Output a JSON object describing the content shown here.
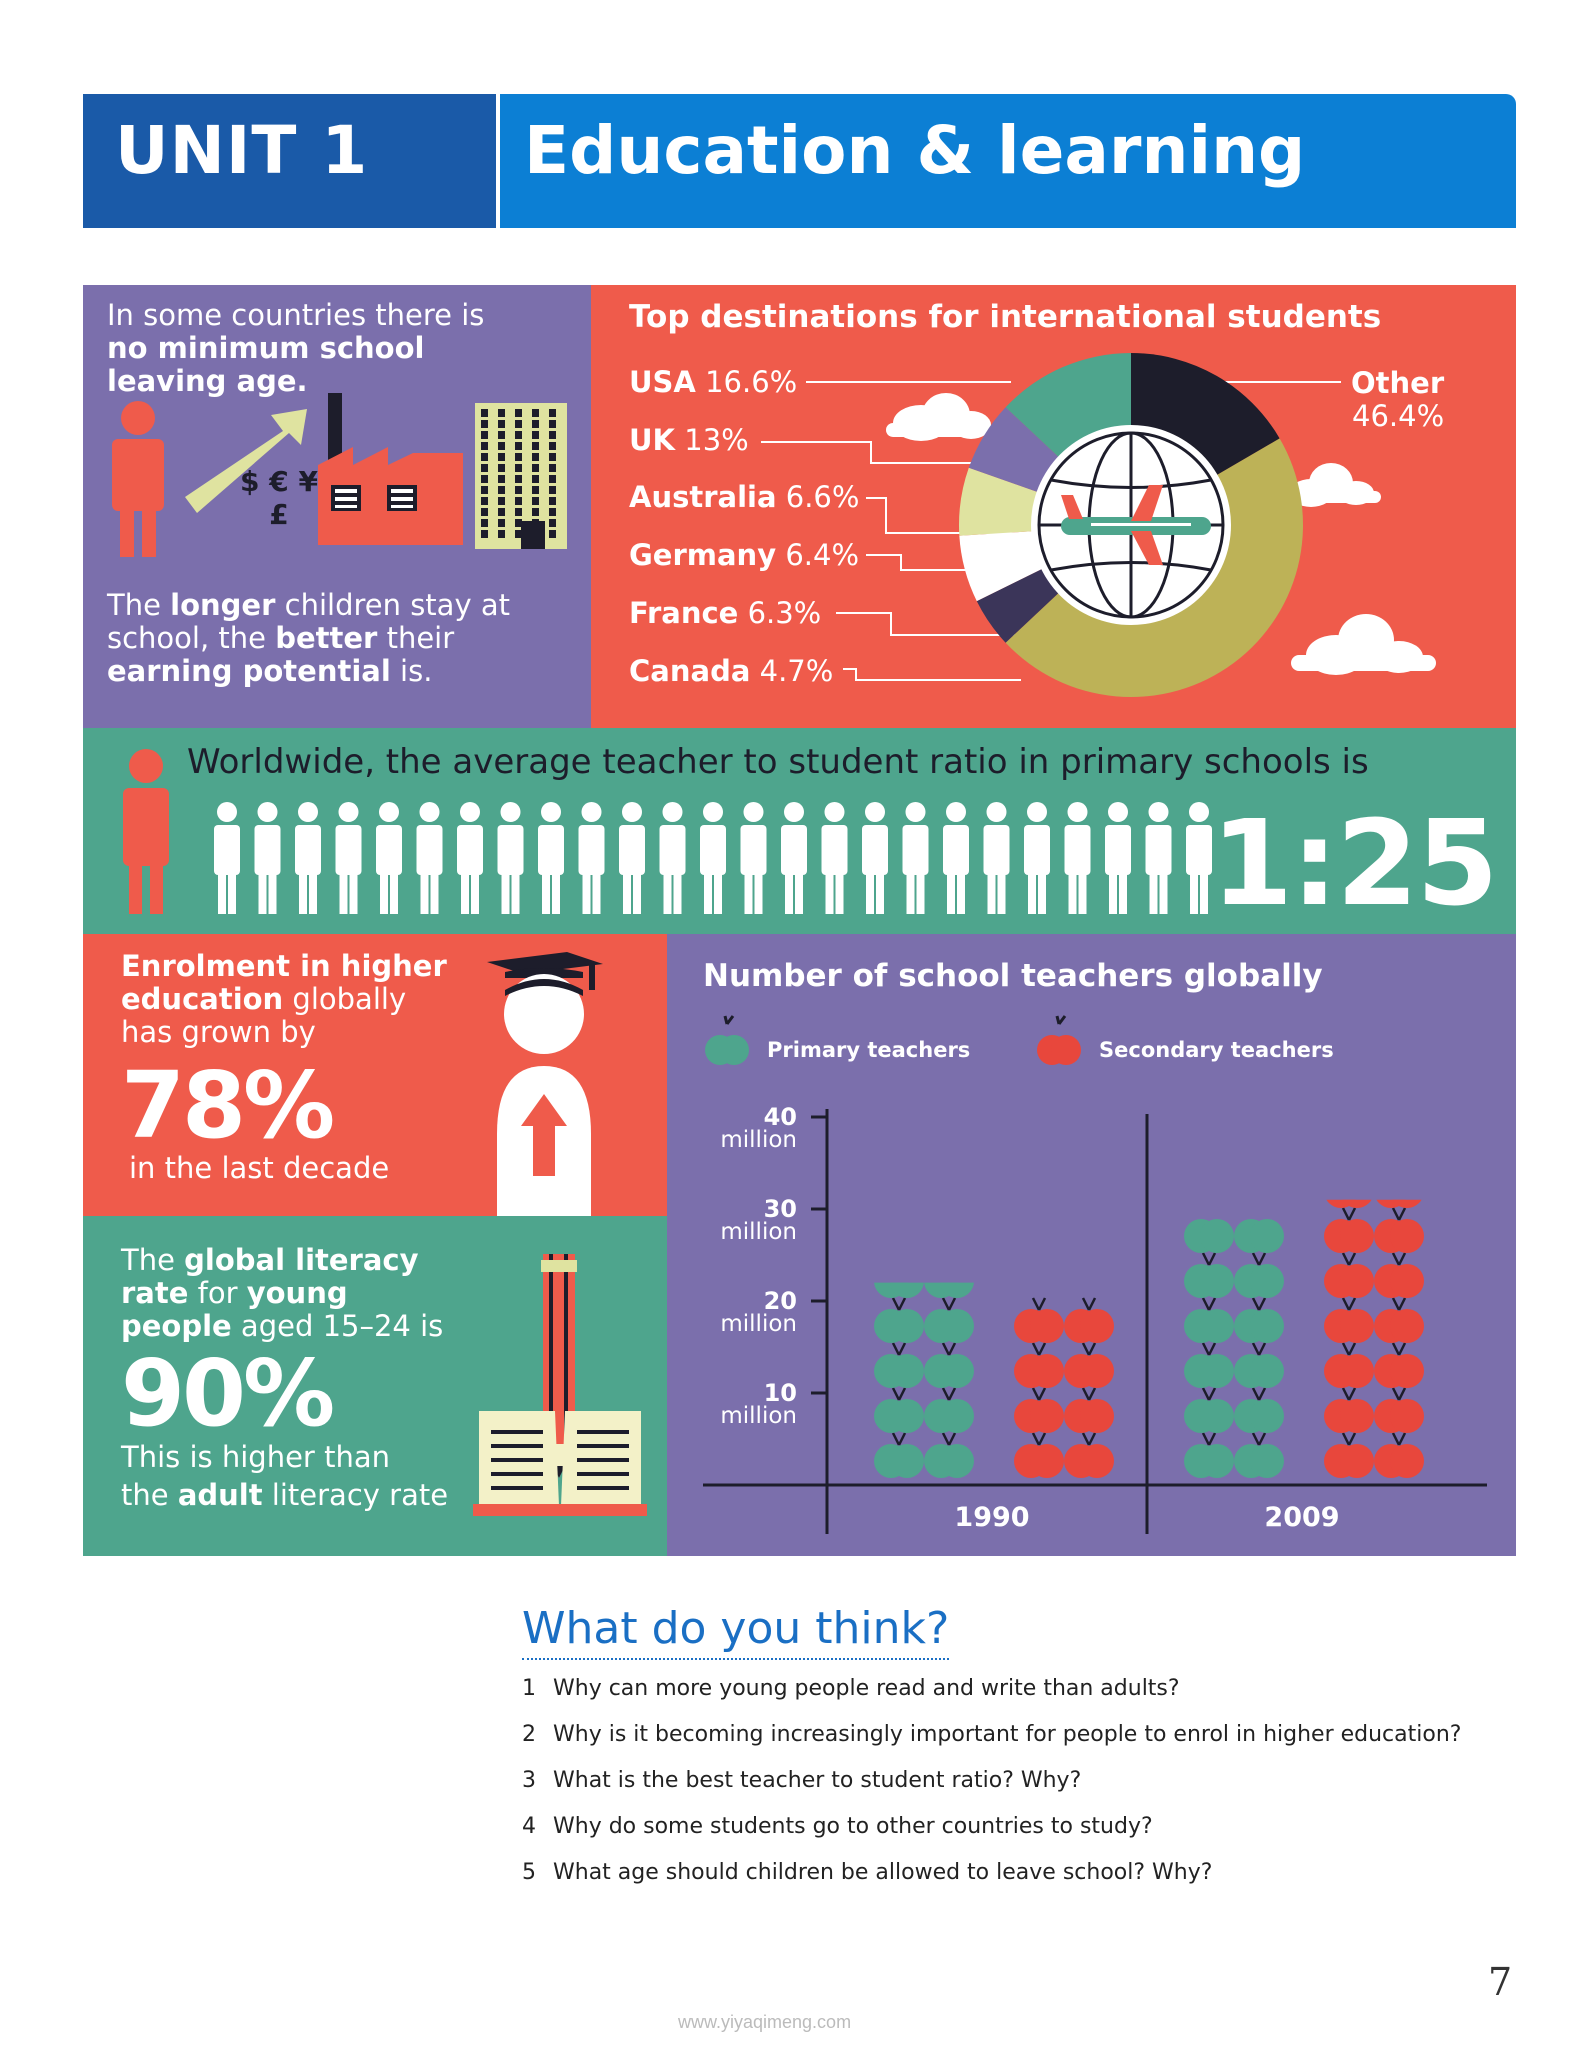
{
  "header": {
    "unit": "UNIT 1",
    "title": "Education & learning"
  },
  "leaving": {
    "line1": "In some countries there is",
    "bold1": "no minimum school",
    "bold2": "leaving age.",
    "bottom": {
      "t1": "The ",
      "b1": "longer",
      "t2": " children stay at",
      "t3": "school, the ",
      "b2": "better",
      "t4": " their",
      "b3": "earning potential",
      "t5": " is."
    },
    "currency": "$ € ¥ £"
  },
  "destinations": {
    "title": "Top destinations for international students",
    "items": [
      {
        "name": "USA",
        "value": "16.6%"
      },
      {
        "name": "UK",
        "value": "13%"
      },
      {
        "name": "Australia",
        "value": "6.6%"
      },
      {
        "name": "Germany",
        "value": "6.4%"
      },
      {
        "name": "France",
        "value": "6.3%"
      },
      {
        "name": "Canada",
        "value": "4.7%"
      }
    ],
    "other": {
      "name": "Other",
      "value": "46.4%"
    }
  },
  "ratio": {
    "text": "Worldwide, the average teacher to student ratio in primary schools is",
    "value": "1:25",
    "students": 25
  },
  "enrolment": {
    "b1": "Enrolment in higher",
    "b2": "education",
    "t1": " globally",
    "t2": "has grown by",
    "pct": "78%",
    "t3": "in the last decade"
  },
  "literacy": {
    "t1": "The ",
    "b1": "global literacy",
    "b2": "rate",
    "t2": " for ",
    "b3": "young",
    "b4": "people",
    "t3": " aged 15–24 is",
    "pct": "90%",
    "t4": "This is higher than",
    "t5": "the ",
    "b5": "adult",
    "t6": " literacy rate"
  },
  "teachers": {
    "title": "Number of school teachers globally",
    "legend_primary": "Primary teachers",
    "legend_secondary": "Secondary teachers",
    "unit_word": "million"
  },
  "chart_data": {
    "type": "bar",
    "title": "Number of school teachers globally",
    "categories": [
      "1990",
      "2009"
    ],
    "series": [
      {
        "name": "Primary teachers",
        "values": [
          22,
          29
        ]
      },
      {
        "name": "Secondary teachers",
        "values": [
          20,
          31
        ]
      }
    ],
    "ylabel": "",
    "ylim": [
      0,
      40
    ],
    "yticks": [
      {
        "num": "10",
        "unit": "million",
        "v": 10
      },
      {
        "num": "20",
        "unit": "million",
        "v": 20
      },
      {
        "num": "30",
        "unit": "million",
        "v": 30
      },
      {
        "num": "40",
        "unit": "million",
        "v": 40
      }
    ],
    "colors": {
      "primary": "#4ea58d",
      "secondary": "#e8473c"
    }
  },
  "questions": {
    "title": "What do you think?",
    "items": [
      {
        "n": "1",
        "text": "Why can more young people read and write than adults?"
      },
      {
        "n": "2",
        "text": "Why is it becoming increasingly important for people to enrol in higher education?"
      },
      {
        "n": "3",
        "text": "What is the best teacher to student ratio? Why?"
      },
      {
        "n": "4",
        "text": "Why do some students go to other countries to study?"
      },
      {
        "n": "5",
        "text": "What age should children be allowed to leave school? Why?"
      }
    ]
  },
  "page_number": "7",
  "watermark": "www.yiyaqimeng.com",
  "colors": {
    "purple": "#7b6fac",
    "red": "#ef5b4b",
    "green": "#4ea58d",
    "unit_blue": "#1a5aa8",
    "title_blue": "#0c7fd4"
  }
}
